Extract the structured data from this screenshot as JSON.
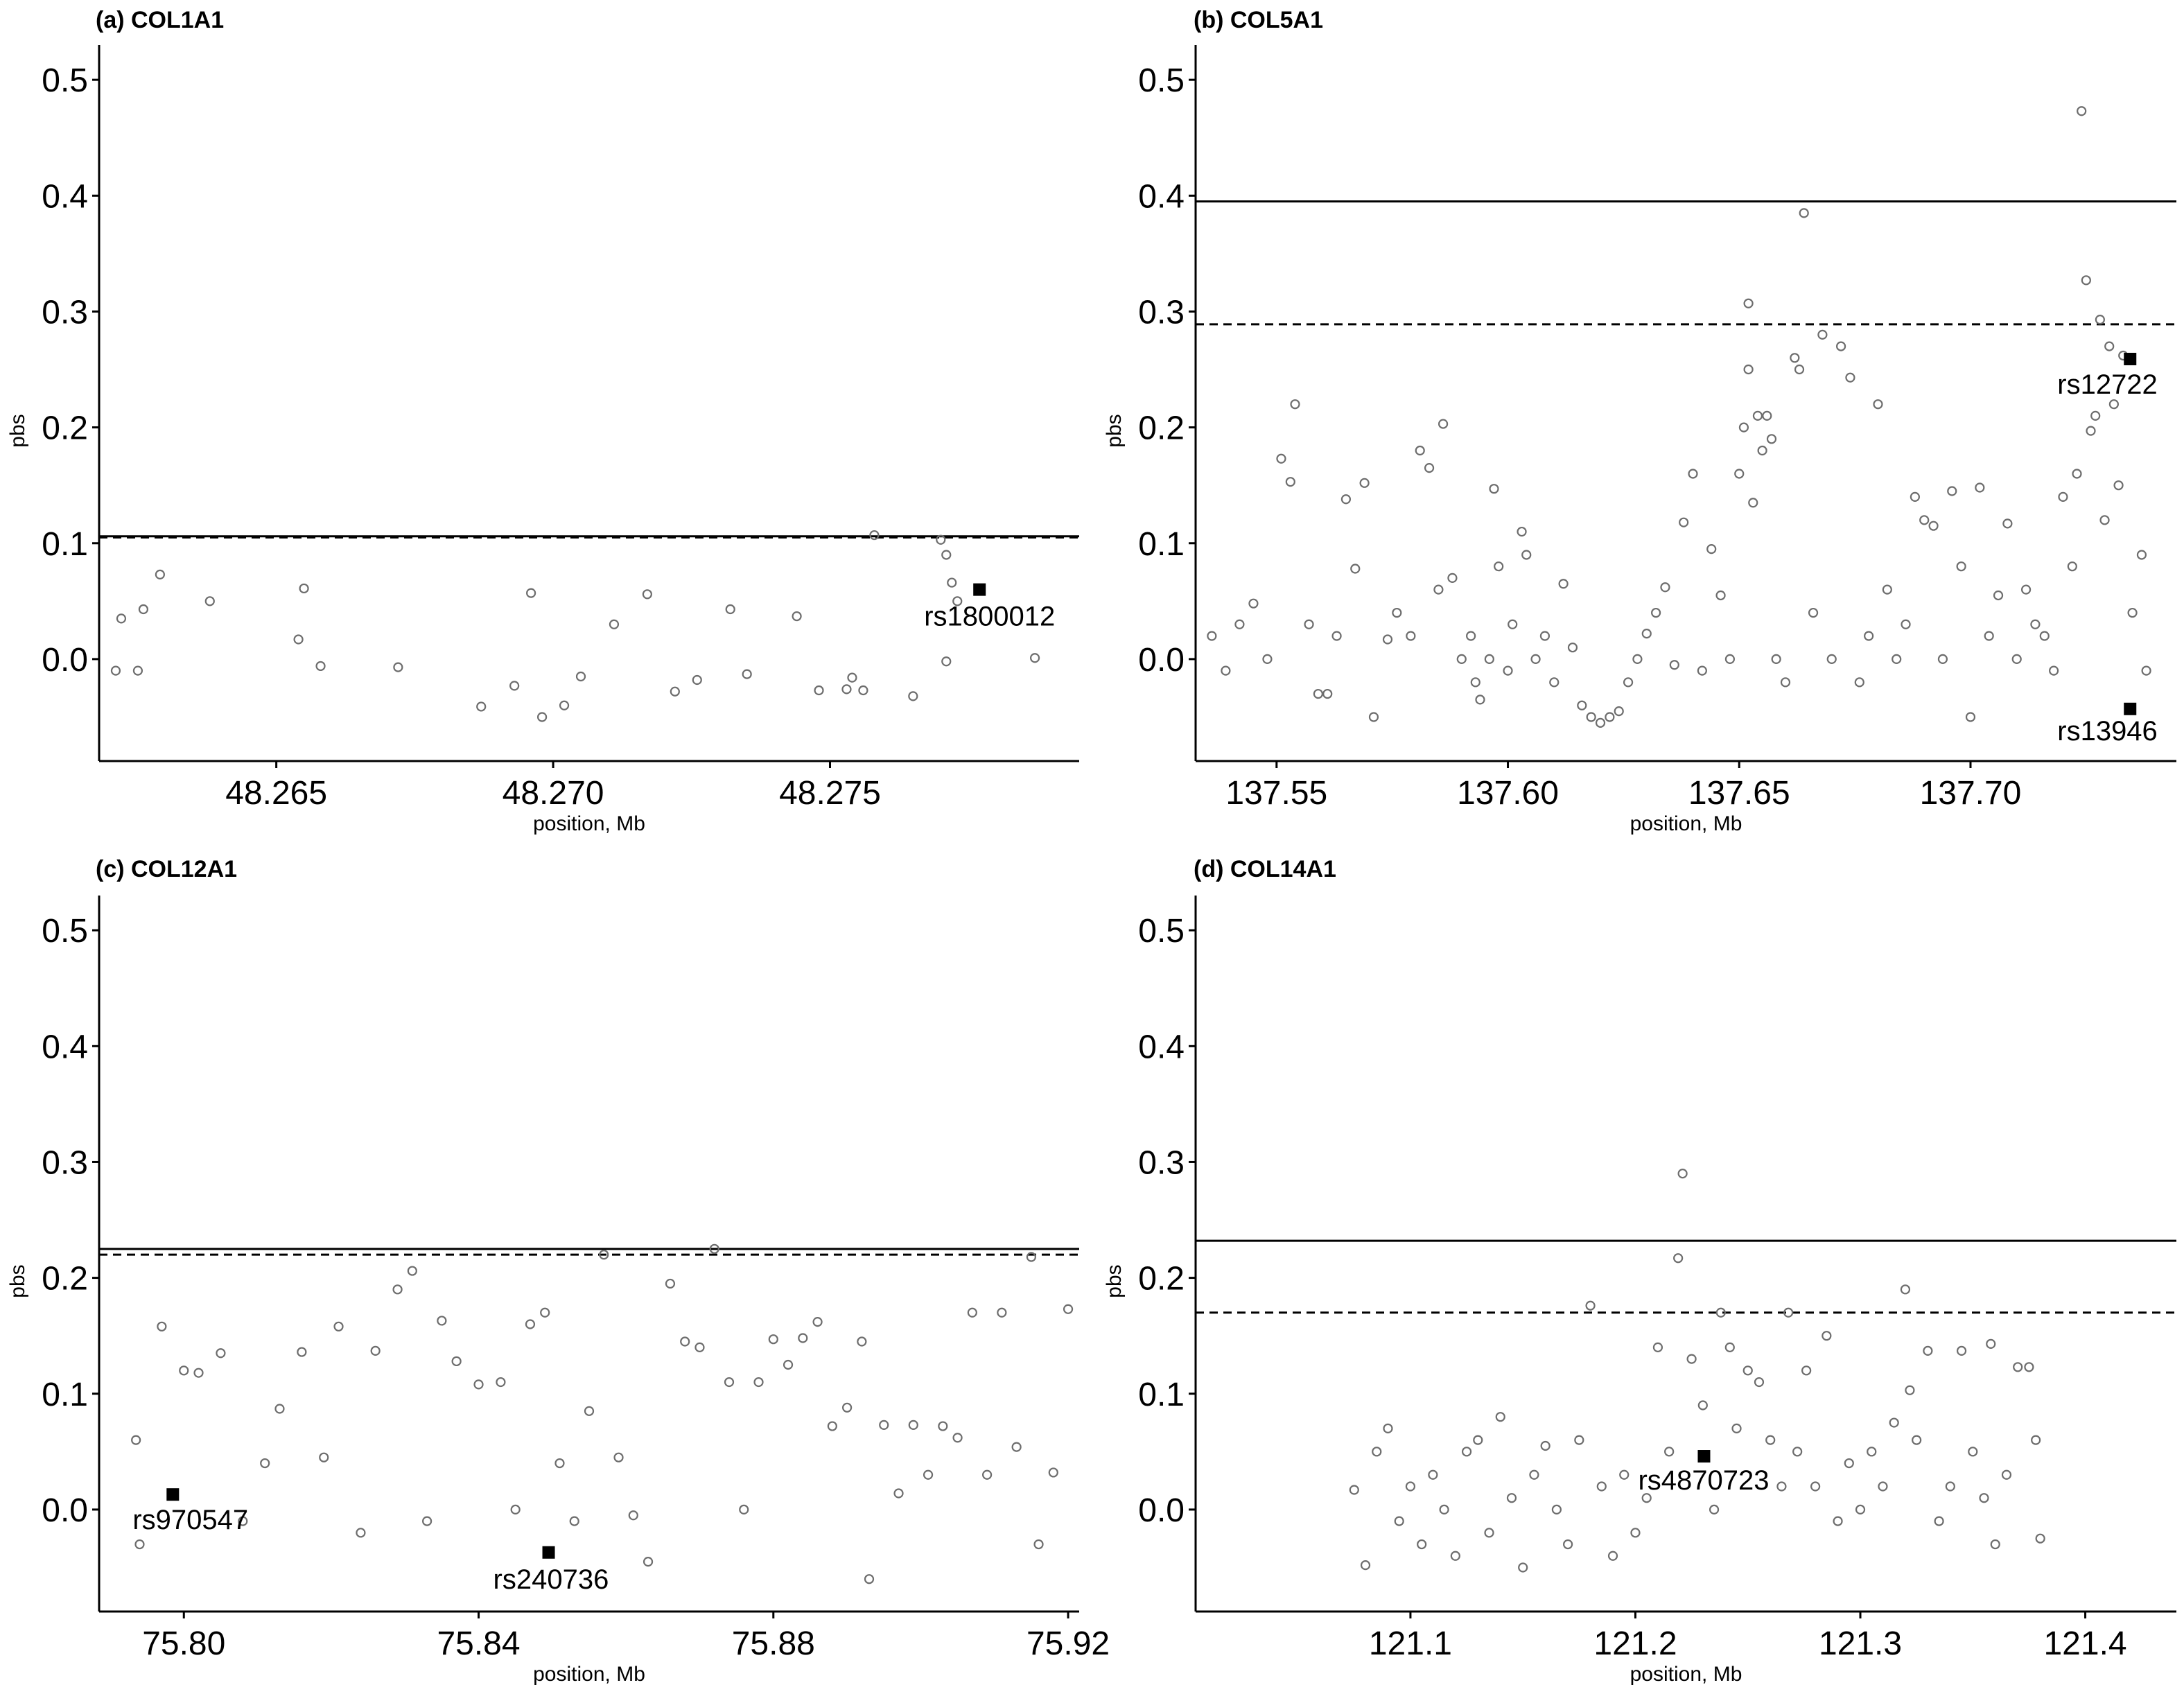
{
  "chart_data": [
    {
      "type": "scatter",
      "title": "(a) COL1A1",
      "xlabel": "position, Mb",
      "ylabel": "pbs",
      "xlim": [
        48.2618,
        48.2795
      ],
      "ylim": [
        -0.088,
        0.53
      ],
      "xticks": [
        48.265,
        48.27,
        48.275
      ],
      "xtick_labels": [
        "48.265",
        "48.270",
        "48.275"
      ],
      "yticks": [
        0.0,
        0.1,
        0.2,
        0.3,
        0.4,
        0.5
      ],
      "ytick_labels": [
        "0.0",
        "0.1",
        "0.2",
        "0.3",
        "0.4",
        "0.5"
      ],
      "grid": false,
      "thresholds": [
        {
          "style": "solid",
          "y": 0.106
        },
        {
          "style": "dashed",
          "y": 0.105
        }
      ],
      "points": [
        [
          48.2621,
          -0.01
        ],
        [
          48.2622,
          0.035
        ],
        [
          48.2625,
          -0.01
        ],
        [
          48.2626,
          0.043
        ],
        [
          48.2629,
          0.073
        ],
        [
          48.2638,
          0.05
        ],
        [
          48.2654,
          0.017
        ],
        [
          48.2655,
          0.061
        ],
        [
          48.2658,
          -0.006
        ],
        [
          48.2672,
          -0.007
        ],
        [
          48.2687,
          -0.041
        ],
        [
          48.2693,
          -0.023
        ],
        [
          48.2696,
          0.057
        ],
        [
          48.2698,
          -0.05
        ],
        [
          48.2702,
          -0.04
        ],
        [
          48.2705,
          -0.015
        ],
        [
          48.2711,
          0.03
        ],
        [
          48.2717,
          0.056
        ],
        [
          48.2722,
          -0.028
        ],
        [
          48.2726,
          -0.018
        ],
        [
          48.2732,
          0.043
        ],
        [
          48.2735,
          -0.013
        ],
        [
          48.2744,
          0.037
        ],
        [
          48.2748,
          -0.027
        ],
        [
          48.2753,
          -0.026
        ],
        [
          48.2754,
          -0.016
        ],
        [
          48.2756,
          -0.027
        ],
        [
          48.2758,
          0.107
        ],
        [
          48.2765,
          -0.032
        ],
        [
          48.277,
          0.103
        ],
        [
          48.2771,
          0.09
        ],
        [
          48.2772,
          0.066
        ],
        [
          48.2773,
          0.05
        ],
        [
          48.2771,
          -0.002
        ],
        [
          48.2787,
          0.001
        ]
      ],
      "highlights": [
        {
          "x": 48.2777,
          "y": 0.06,
          "label": "rs1800012"
        }
      ]
    },
    {
      "type": "scatter",
      "title": "(b) COL5A1",
      "xlabel": "position, Mb",
      "ylabel": "pbs",
      "xlim": [
        137.5325,
        137.7445
      ],
      "ylim": [
        -0.088,
        0.53
      ],
      "xticks": [
        137.55,
        137.6,
        137.65,
        137.7
      ],
      "xtick_labels": [
        "137.55",
        "137.60",
        "137.65",
        "137.70"
      ],
      "yticks": [
        0.0,
        0.1,
        0.2,
        0.3,
        0.4,
        0.5
      ],
      "ytick_labels": [
        "0.0",
        "0.1",
        "0.2",
        "0.3",
        "0.4",
        "0.5"
      ],
      "grid": false,
      "thresholds": [
        {
          "style": "solid",
          "y": 0.395
        },
        {
          "style": "dashed",
          "y": 0.289
        }
      ],
      "points": [
        [
          137.536,
          0.02
        ],
        [
          137.539,
          -0.01
        ],
        [
          137.542,
          0.03
        ],
        [
          137.545,
          0.048
        ],
        [
          137.548,
          0.0
        ],
        [
          137.551,
          0.173
        ],
        [
          137.553,
          0.153
        ],
        [
          137.554,
          0.22
        ],
        [
          137.557,
          0.03
        ],
        [
          137.559,
          -0.03
        ],
        [
          137.561,
          -0.03
        ],
        [
          137.563,
          0.02
        ],
        [
          137.565,
          0.138
        ],
        [
          137.567,
          0.078
        ],
        [
          137.569,
          0.152
        ],
        [
          137.571,
          -0.05
        ],
        [
          137.574,
          0.017
        ],
        [
          137.576,
          0.04
        ],
        [
          137.579,
          0.02
        ],
        [
          137.581,
          0.18
        ],
        [
          137.583,
          0.165
        ],
        [
          137.585,
          0.06
        ],
        [
          137.586,
          0.203
        ],
        [
          137.588,
          0.07
        ],
        [
          137.59,
          0.0
        ],
        [
          137.592,
          0.02
        ],
        [
          137.593,
          -0.02
        ],
        [
          137.594,
          -0.035
        ],
        [
          137.596,
          0.0
        ],
        [
          137.597,
          0.147
        ],
        [
          137.598,
          0.08
        ],
        [
          137.6,
          -0.01
        ],
        [
          137.601,
          0.03
        ],
        [
          137.603,
          0.11
        ],
        [
          137.604,
          0.09
        ],
        [
          137.606,
          0.0
        ],
        [
          137.608,
          0.02
        ],
        [
          137.61,
          -0.02
        ],
        [
          137.612,
          0.065
        ],
        [
          137.614,
          0.01
        ],
        [
          137.616,
          -0.04
        ],
        [
          137.618,
          -0.05
        ],
        [
          137.62,
          -0.055
        ],
        [
          137.622,
          -0.05
        ],
        [
          137.624,
          -0.045
        ],
        [
          137.626,
          -0.02
        ],
        [
          137.628,
          0.0
        ],
        [
          137.63,
          0.022
        ],
        [
          137.632,
          0.04
        ],
        [
          137.634,
          0.062
        ],
        [
          137.636,
          -0.005
        ],
        [
          137.638,
          0.118
        ],
        [
          137.64,
          0.16
        ],
        [
          137.642,
          -0.01
        ],
        [
          137.644,
          0.095
        ],
        [
          137.646,
          0.055
        ],
        [
          137.648,
          0.0
        ],
        [
          137.65,
          0.16
        ],
        [
          137.651,
          0.2
        ],
        [
          137.652,
          0.25
        ],
        [
          137.652,
          0.307
        ],
        [
          137.653,
          0.135
        ],
        [
          137.654,
          0.21
        ],
        [
          137.655,
          0.18
        ],
        [
          137.656,
          0.21
        ],
        [
          137.657,
          0.19
        ],
        [
          137.658,
          0.0
        ],
        [
          137.66,
          -0.02
        ],
        [
          137.662,
          0.26
        ],
        [
          137.663,
          0.25
        ],
        [
          137.664,
          0.385
        ],
        [
          137.666,
          0.04
        ],
        [
          137.668,
          0.28
        ],
        [
          137.67,
          0.0
        ],
        [
          137.672,
          0.27
        ],
        [
          137.674,
          0.243
        ],
        [
          137.676,
          -0.02
        ],
        [
          137.678,
          0.02
        ],
        [
          137.68,
          0.22
        ],
        [
          137.682,
          0.06
        ],
        [
          137.684,
          0.0
        ],
        [
          137.686,
          0.03
        ],
        [
          137.688,
          0.14
        ],
        [
          137.69,
          0.12
        ],
        [
          137.692,
          0.115
        ],
        [
          137.694,
          0.0
        ],
        [
          137.696,
          0.145
        ],
        [
          137.698,
          0.08
        ],
        [
          137.7,
          -0.05
        ],
        [
          137.702,
          0.148
        ],
        [
          137.704,
          0.02
        ],
        [
          137.706,
          0.055
        ],
        [
          137.708,
          0.117
        ],
        [
          137.71,
          0.0
        ],
        [
          137.712,
          0.06
        ],
        [
          137.714,
          0.03
        ],
        [
          137.716,
          0.02
        ],
        [
          137.718,
          -0.01
        ],
        [
          137.72,
          0.14
        ],
        [
          137.722,
          0.08
        ],
        [
          137.723,
          0.16
        ],
        [
          137.724,
          0.473
        ],
        [
          137.725,
          0.327
        ],
        [
          137.726,
          0.197
        ],
        [
          137.727,
          0.21
        ],
        [
          137.728,
          0.293
        ],
        [
          137.729,
          0.12
        ],
        [
          137.73,
          0.27
        ],
        [
          137.731,
          0.22
        ],
        [
          137.732,
          0.15
        ],
        [
          137.733,
          0.262
        ],
        [
          137.735,
          0.04
        ],
        [
          137.737,
          0.09
        ],
        [
          137.738,
          -0.01
        ]
      ],
      "highlights": [
        {
          "x": 137.7345,
          "y": 0.259,
          "label": "rs12722"
        },
        {
          "x": 137.7345,
          "y": -0.043,
          "label": "rs13946"
        }
      ]
    },
    {
      "type": "scatter",
      "title": "(c) COL12A1",
      "xlabel": "position, Mb",
      "ylabel": "pbs",
      "xlim": [
        75.7885,
        75.9215
      ],
      "ylim": [
        -0.088,
        0.53
      ],
      "xticks": [
        75.8,
        75.84,
        75.88,
        75.92
      ],
      "xtick_labels": [
        "75.80",
        "75.84",
        "75.88",
        "75.92"
      ],
      "yticks": [
        0.0,
        0.1,
        0.2,
        0.3,
        0.4,
        0.5
      ],
      "ytick_labels": [
        "0.0",
        "0.1",
        "0.2",
        "0.3",
        "0.4",
        "0.5"
      ],
      "grid": false,
      "thresholds": [
        {
          "style": "solid",
          "y": 0.225
        },
        {
          "style": "dashed",
          "y": 0.22
        }
      ],
      "points": [
        [
          75.7935,
          0.06
        ],
        [
          75.794,
          -0.03
        ],
        [
          75.797,
          0.158
        ],
        [
          75.8,
          0.12
        ],
        [
          75.802,
          0.118
        ],
        [
          75.805,
          0.135
        ],
        [
          75.808,
          -0.01
        ],
        [
          75.811,
          0.04
        ],
        [
          75.813,
          0.087
        ],
        [
          75.816,
          0.136
        ],
        [
          75.819,
          0.045
        ],
        [
          75.821,
          0.158
        ],
        [
          75.824,
          -0.02
        ],
        [
          75.826,
          0.137
        ],
        [
          75.829,
          0.19
        ],
        [
          75.831,
          0.206
        ],
        [
          75.833,
          -0.01
        ],
        [
          75.835,
          0.163
        ],
        [
          75.837,
          0.128
        ],
        [
          75.84,
          0.108
        ],
        [
          75.843,
          0.11
        ],
        [
          75.845,
          0.0
        ],
        [
          75.847,
          0.16
        ],
        [
          75.849,
          0.17
        ],
        [
          75.851,
          0.04
        ],
        [
          75.853,
          -0.01
        ],
        [
          75.855,
          0.085
        ],
        [
          75.857,
          0.22
        ],
        [
          75.859,
          0.045
        ],
        [
          75.861,
          -0.005
        ],
        [
          75.863,
          -0.045
        ],
        [
          75.866,
          0.195
        ],
        [
          75.868,
          0.145
        ],
        [
          75.87,
          0.14
        ],
        [
          75.872,
          0.225
        ],
        [
          75.874,
          0.11
        ],
        [
          75.876,
          0.0
        ],
        [
          75.878,
          0.11
        ],
        [
          75.88,
          0.147
        ],
        [
          75.882,
          0.125
        ],
        [
          75.884,
          0.148
        ],
        [
          75.886,
          0.162
        ],
        [
          75.888,
          0.072
        ],
        [
          75.89,
          0.088
        ],
        [
          75.892,
          0.145
        ],
        [
          75.893,
          -0.06
        ],
        [
          75.895,
          0.073
        ],
        [
          75.897,
          0.014
        ],
        [
          75.899,
          0.073
        ],
        [
          75.901,
          0.03
        ],
        [
          75.903,
          0.072
        ],
        [
          75.905,
          0.062
        ],
        [
          75.907,
          0.17
        ],
        [
          75.909,
          0.03
        ],
        [
          75.911,
          0.17
        ],
        [
          75.913,
          0.054
        ],
        [
          75.915,
          0.218
        ],
        [
          75.916,
          -0.03
        ],
        [
          75.918,
          0.032
        ],
        [
          75.92,
          0.173
        ]
      ],
      "highlights": [
        {
          "x": 75.7985,
          "y": 0.013,
          "label": "rs970547"
        },
        {
          "x": 75.8495,
          "y": -0.037,
          "label": "rs240736"
        }
      ]
    },
    {
      "type": "scatter",
      "title": "(d) COL14A1",
      "xlabel": "position, Mb",
      "ylabel": "pbs",
      "xlim": [
        121.0045,
        121.4405
      ],
      "ylim": [
        -0.088,
        0.53
      ],
      "xticks": [
        121.1,
        121.2,
        121.3,
        121.4
      ],
      "xtick_labels": [
        "121.1",
        "121.2",
        "121.3",
        "121.4"
      ],
      "yticks": [
        0.0,
        0.1,
        0.2,
        0.3,
        0.4,
        0.5
      ],
      "ytick_labels": [
        "0.0",
        "0.1",
        "0.2",
        "0.3",
        "0.4",
        "0.5"
      ],
      "grid": false,
      "thresholds": [
        {
          "style": "solid",
          "y": 0.232
        },
        {
          "style": "dashed",
          "y": 0.17
        }
      ],
      "points": [
        [
          121.075,
          0.017
        ],
        [
          121.08,
          -0.048
        ],
        [
          121.085,
          0.05
        ],
        [
          121.09,
          0.07
        ],
        [
          121.095,
          -0.01
        ],
        [
          121.1,
          0.02
        ],
        [
          121.105,
          -0.03
        ],
        [
          121.11,
          0.03
        ],
        [
          121.115,
          0.0
        ],
        [
          121.12,
          -0.04
        ],
        [
          121.125,
          0.05
        ],
        [
          121.13,
          0.06
        ],
        [
          121.135,
          -0.02
        ],
        [
          121.14,
          0.08
        ],
        [
          121.145,
          0.01
        ],
        [
          121.15,
          -0.05
        ],
        [
          121.155,
          0.03
        ],
        [
          121.16,
          0.055
        ],
        [
          121.165,
          0.0
        ],
        [
          121.17,
          -0.03
        ],
        [
          121.175,
          0.06
        ],
        [
          121.18,
          0.176
        ],
        [
          121.185,
          0.02
        ],
        [
          121.19,
          -0.04
        ],
        [
          121.195,
          0.03
        ],
        [
          121.2,
          -0.02
        ],
        [
          121.205,
          0.01
        ],
        [
          121.21,
          0.14
        ],
        [
          121.215,
          0.05
        ],
        [
          121.219,
          0.217
        ],
        [
          121.221,
          0.29
        ],
        [
          121.225,
          0.13
        ],
        [
          121.23,
          0.09
        ],
        [
          121.235,
          0.0
        ],
        [
          121.238,
          0.17
        ],
        [
          121.242,
          0.14
        ],
        [
          121.245,
          0.07
        ],
        [
          121.25,
          0.12
        ],
        [
          121.255,
          0.11
        ],
        [
          121.26,
          0.06
        ],
        [
          121.265,
          0.02
        ],
        [
          121.268,
          0.17
        ],
        [
          121.272,
          0.05
        ],
        [
          121.276,
          0.12
        ],
        [
          121.28,
          0.02
        ],
        [
          121.285,
          0.15
        ],
        [
          121.29,
          -0.01
        ],
        [
          121.295,
          0.04
        ],
        [
          121.3,
          0.0
        ],
        [
          121.305,
          0.05
        ],
        [
          121.31,
          0.02
        ],
        [
          121.315,
          0.075
        ],
        [
          121.32,
          0.19
        ],
        [
          121.322,
          0.103
        ],
        [
          121.325,
          0.06
        ],
        [
          121.33,
          0.137
        ],
        [
          121.335,
          -0.01
        ],
        [
          121.34,
          0.02
        ],
        [
          121.345,
          0.137
        ],
        [
          121.35,
          0.05
        ],
        [
          121.355,
          0.01
        ],
        [
          121.358,
          0.143
        ],
        [
          121.36,
          -0.03
        ],
        [
          121.365,
          0.03
        ],
        [
          121.37,
          0.123
        ],
        [
          121.375,
          0.123
        ],
        [
          121.378,
          0.06
        ],
        [
          121.38,
          -0.025
        ]
      ],
      "highlights": [
        {
          "x": 121.2305,
          "y": 0.046,
          "label": "rs4870723"
        }
      ]
    }
  ]
}
